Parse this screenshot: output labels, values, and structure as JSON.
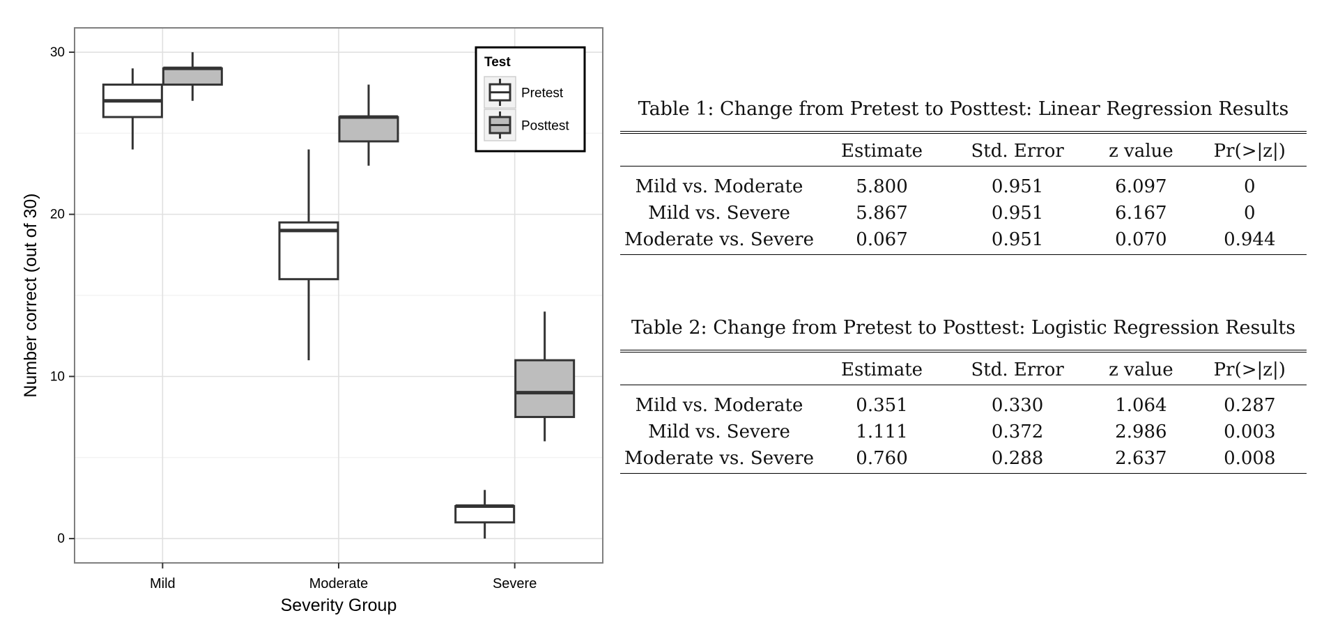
{
  "chart_data": {
    "type": "boxplot",
    "xlabel": "Severity Group",
    "ylabel": "Number correct (out of 30)",
    "categories": [
      "Mild",
      "Moderate",
      "Severe"
    ],
    "yticks": [
      0,
      10,
      20,
      30
    ],
    "ylim": [
      -1.5,
      31.5
    ],
    "grid": true,
    "legend": {
      "title": "Test",
      "position": "top-right",
      "entries": [
        {
          "name": "Pretest",
          "color": "#ffffff"
        },
        {
          "name": "Posttest",
          "color": "#bdbdbd"
        }
      ]
    },
    "series": [
      {
        "name": "Pretest",
        "fill": "#ffffff",
        "boxes": [
          {
            "category": "Mild",
            "min": 24,
            "q1": 26,
            "median": 27,
            "q3": 28,
            "max": 29
          },
          {
            "category": "Moderate",
            "min": 11,
            "q1": 16,
            "median": 19,
            "q3": 19.5,
            "max": 24
          },
          {
            "category": "Severe",
            "min": 0,
            "q1": 1,
            "median": 2,
            "q3": 2,
            "max": 3
          }
        ]
      },
      {
        "name": "Posttest",
        "fill": "#bdbdbd",
        "boxes": [
          {
            "category": "Mild",
            "min": 27,
            "q1": 28,
            "median": 29,
            "q3": 29,
            "max": 30
          },
          {
            "category": "Moderate",
            "min": 23,
            "q1": 24.5,
            "median": 26,
            "q3": 26,
            "max": 28
          },
          {
            "category": "Severe",
            "min": 6,
            "q1": 7.5,
            "median": 9,
            "q3": 11,
            "max": 14
          }
        ]
      }
    ]
  },
  "tables": [
    {
      "caption": "Table 1: Change from Pretest to Posttest: Linear Regression Results",
      "columns": [
        "",
        "Estimate",
        "Std. Error",
        "z value",
        "Pr(>|z|)"
      ],
      "rows": [
        [
          "Mild vs. Moderate",
          "5.800",
          "0.951",
          "6.097",
          "0"
        ],
        [
          "Mild vs. Severe",
          "5.867",
          "0.951",
          "6.167",
          "0"
        ],
        [
          "Moderate vs. Severe",
          "0.067",
          "0.951",
          "0.070",
          "0.944"
        ]
      ]
    },
    {
      "caption": "Table 2: Change from Pretest to Posttest: Logistic Regression Results",
      "columns": [
        "",
        "Estimate",
        "Std. Error",
        "z value",
        "Pr(>|z|)"
      ],
      "rows": [
        [
          "Mild vs. Moderate",
          "0.351",
          "0.330",
          "1.064",
          "0.287"
        ],
        [
          "Mild vs. Severe",
          "1.111",
          "0.372",
          "2.986",
          "0.003"
        ],
        [
          "Moderate vs. Severe",
          "0.760",
          "0.288",
          "2.637",
          "0.008"
        ]
      ]
    }
  ]
}
